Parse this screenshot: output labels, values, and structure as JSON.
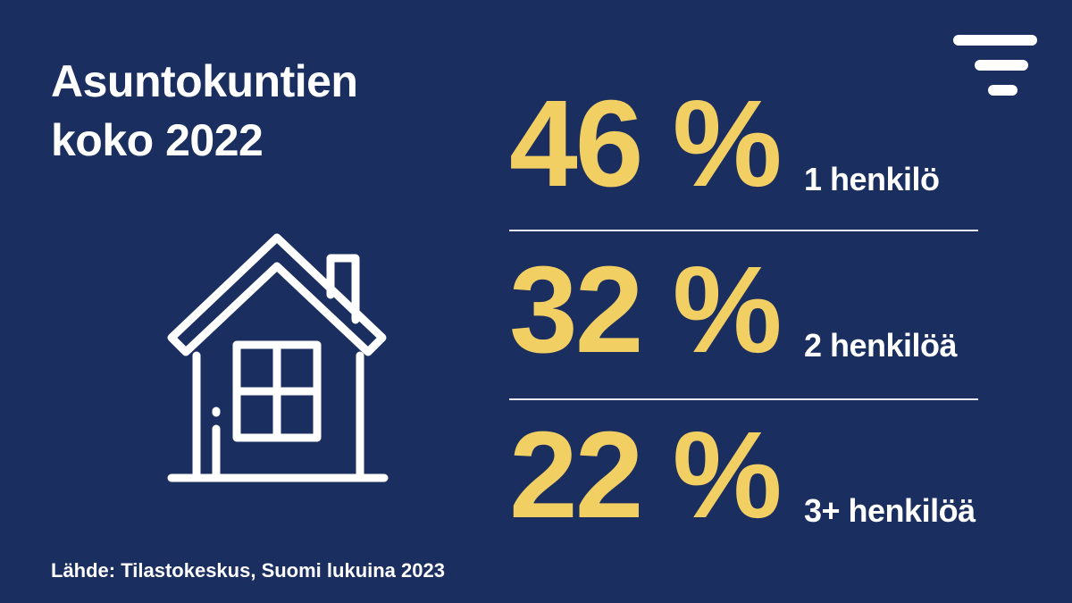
{
  "header": {
    "title_lines": [
      "Asuntokuntien",
      "koko 2022"
    ]
  },
  "stats": [
    {
      "value": "46 %",
      "label": "1 henkilö"
    },
    {
      "value": "32 %",
      "label": "2 henkilöä"
    },
    {
      "value": "22 %",
      "label": "3+ henkilöä"
    }
  ],
  "footer": {
    "source": "Lähde: Tilastokeskus, Suomi lukuina 2023"
  }
}
